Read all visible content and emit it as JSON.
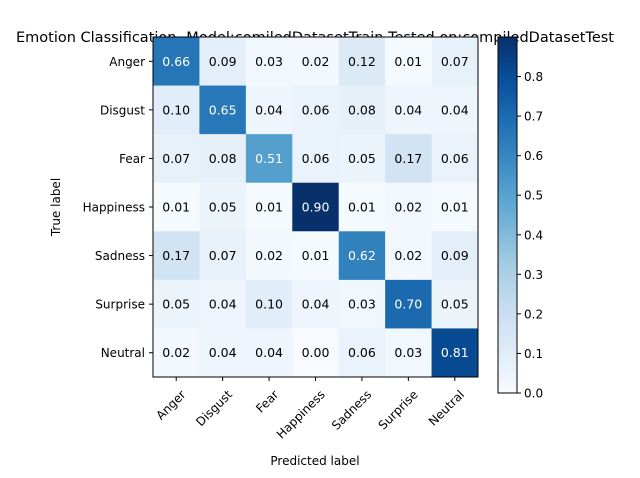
{
  "chart_data": {
    "type": "heatmap",
    "title": "Emotion Classification- Model:comiledDatasetTrain Tested on:compiledDatasetTest",
    "xlabel": "Predicted label",
    "ylabel": "True label",
    "x_categories": [
      "Anger",
      "Disgust",
      "Fear",
      "Happiness",
      "Sadness",
      "Surprise",
      "Neutral"
    ],
    "y_categories": [
      "Anger",
      "Disgust",
      "Fear",
      "Happiness",
      "Sadness",
      "Surprise",
      "Neutral"
    ],
    "values": [
      [
        0.66,
        0.09,
        0.03,
        0.02,
        0.12,
        0.01,
        0.07
      ],
      [
        0.1,
        0.65,
        0.04,
        0.06,
        0.08,
        0.04,
        0.04
      ],
      [
        0.07,
        0.08,
        0.51,
        0.06,
        0.05,
        0.17,
        0.06
      ],
      [
        0.01,
        0.05,
        0.01,
        0.9,
        0.01,
        0.02,
        0.01
      ],
      [
        0.17,
        0.07,
        0.02,
        0.01,
        0.62,
        0.02,
        0.09
      ],
      [
        0.05,
        0.04,
        0.1,
        0.04,
        0.03,
        0.7,
        0.05
      ],
      [
        0.02,
        0.04,
        0.04,
        0.0,
        0.06,
        0.03,
        0.81
      ]
    ],
    "colormap": "Blues",
    "color_range": [
      0,
      0.9
    ],
    "colorbar_ticks": [
      "0.0",
      "0.1",
      "0.2",
      "0.3",
      "0.4",
      "0.5",
      "0.6",
      "0.7",
      "0.8"
    ],
    "colorbar_tick_values": [
      0,
      0.1,
      0.2,
      0.3,
      0.4,
      0.5,
      0.6,
      0.7,
      0.8
    ],
    "x_tick_rotation": 45,
    "grid": false
  }
}
